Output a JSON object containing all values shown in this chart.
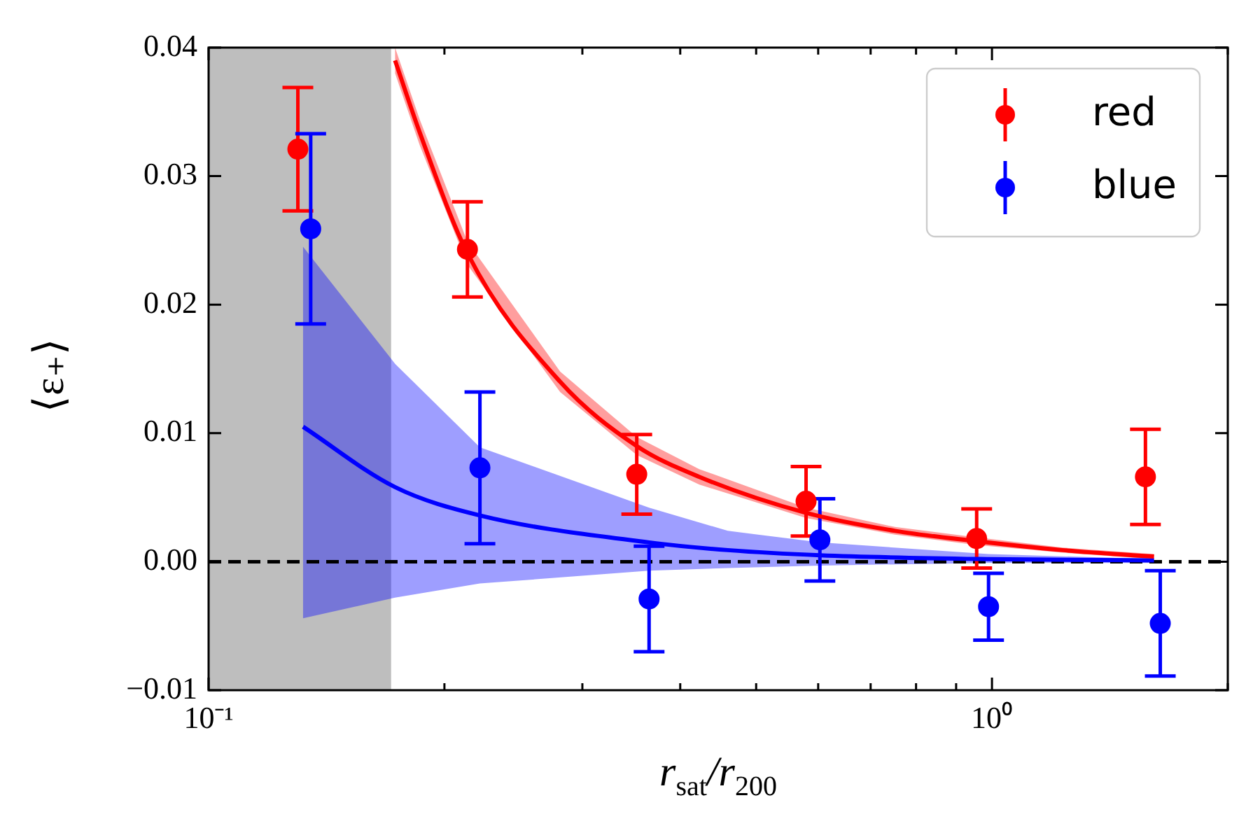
{
  "chart_data": {
    "type": "scatter",
    "xlabel": "r$_{sat}$/r$_{200}$",
    "ylabel": "⟨ε₊⟩",
    "log": "x",
    "xlim": [
      0.1,
      2
    ],
    "xticks": [
      {
        "value": 0.1,
        "label": "10⁻¹"
      },
      {
        "value": 0.2,
        "label": null
      },
      {
        "value": 0.3,
        "label": null
      },
      {
        "value": 0.4,
        "label": null
      },
      {
        "value": 0.5,
        "label": null
      },
      {
        "value": 0.6,
        "label": null
      },
      {
        "value": 0.7,
        "label": null
      },
      {
        "value": 0.8,
        "label": null
      },
      {
        "value": 0.9,
        "label": null
      },
      {
        "value": 1,
        "label": "10⁰"
      },
      {
        "value": 2,
        "label": null
      }
    ],
    "ylim": [
      -0.01,
      0.04
    ],
    "yticks": [
      {
        "value": -0.01,
        "label": "−0.01"
      },
      {
        "value": 0,
        "label": "0.00"
      },
      {
        "value": 0.01,
        "label": "0.01"
      },
      {
        "value": 0.02,
        "label": "0.02"
      },
      {
        "value": 0.03,
        "label": "0.03"
      },
      {
        "value": 0.04,
        "label": "0.04"
      }
    ],
    "legend": "top right",
    "series": [
      {
        "name": "red",
        "color": "#ff0000",
        "marker": "circle",
        "x": [
          0.13,
          0.214,
          0.352,
          0.579,
          0.956,
          1.57
        ],
        "values": [
          0.0321,
          0.0243,
          0.0068,
          0.0047,
          0.0018,
          0.0066
        ],
        "errors": [
          0.0048,
          0.0037,
          0.0031,
          0.0027,
          0.0023,
          0.0037
        ]
      },
      {
        "name": "blue",
        "color": "#0000ff",
        "marker": "circle",
        "x": [
          0.135,
          0.222,
          0.365,
          0.603,
          0.99,
          1.64
        ],
        "values": [
          0.0259,
          0.0073,
          -0.0029,
          0.0017,
          -0.0035,
          -0.0048
        ],
        "errors": [
          0.0074,
          0.0059,
          0.0041,
          0.0032,
          0.0026,
          0.0041
        ]
      },
      {
        "type": "line",
        "color": "#ff0000",
        "x": [
          0.173,
          0.186,
          0.214,
          0.281,
          0.352,
          0.423,
          0.579,
          0.752,
          0.954,
          1.23,
          1.61
        ],
        "values": [
          0.039,
          0.0334,
          0.024,
          0.014,
          0.009,
          0.0066,
          0.0038,
          0.0024,
          0.0016,
          0.0009,
          0.0004
        ],
        "lower": [
          0.038,
          0.0324,
          0.0231,
          0.0132,
          0.0083,
          0.006,
          0.0034,
          0.0021,
          0.0013,
          0.0007,
          0.0002
        ],
        "upper": [
          0.04,
          0.0344,
          0.0249,
          0.0148,
          0.0097,
          0.0072,
          0.0042,
          0.0027,
          0.0019,
          0.0011,
          0.0006
        ]
      },
      {
        "type": "line",
        "color": "#0000ff",
        "x": [
          0.132,
          0.173,
          0.222,
          0.365,
          0.46,
          0.603,
          0.99,
          1.61
        ],
        "values": [
          0.0105,
          0.0058,
          0.0036,
          0.0015,
          0.0009,
          0.0005,
          0.0002,
          0.0001
        ],
        "lower": [
          -0.0044,
          -0.0028,
          -0.0017,
          -0.0007,
          -0.0005,
          -0.0003,
          -0.0001,
          -0.0001
        ],
        "upper": [
          0.0245,
          0.0154,
          0.0089,
          0.0042,
          0.0024,
          0.0015,
          0.0006,
          0.0002
        ]
      }
    ],
    "bands": [
      {
        "axis": "x",
        "from": 0.1,
        "to": 0.171,
        "color": "#bebebe"
      }
    ],
    "ref_lines": [
      {
        "axis": "y",
        "value": 0,
        "color": "#000000",
        "line_style": "dashed"
      }
    ]
  }
}
